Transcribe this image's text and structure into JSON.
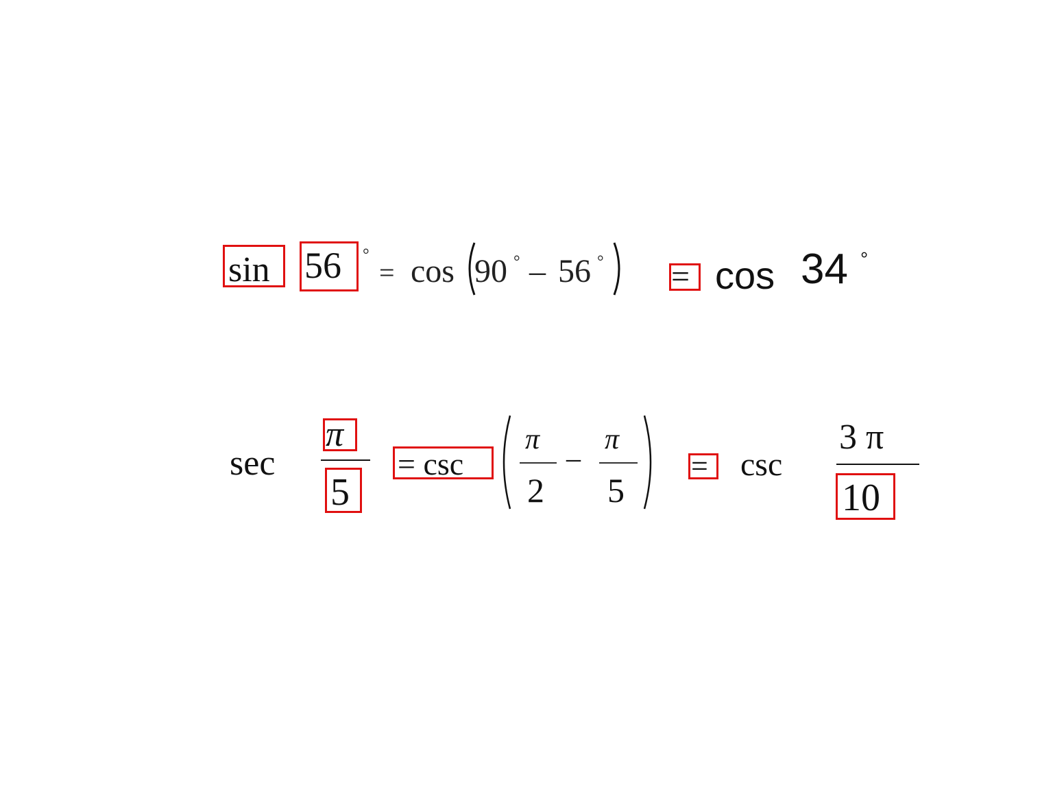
{
  "equation1": {
    "sin": "sin",
    "angle": "56",
    "degree": "°",
    "equals": "=",
    "cos": "cos",
    "inner_90": "90",
    "inner_deg_1": "°",
    "minus": "–",
    "inner_56": "56",
    "inner_deg_2": "°",
    "equals_result": "=",
    "result_cos": "cos",
    "result_angle": "34",
    "result_degree": "°"
  },
  "equation2": {
    "sec": "sec",
    "numerator": "π",
    "denominator": "5",
    "equals_csc": "= csc",
    "frac1_num": "π",
    "frac1_den": "2",
    "minus": "–",
    "frac2_num": "π",
    "frac2_den": "5",
    "equals_result": "=",
    "result_csc": "csc",
    "result_numerator": "3 π",
    "result_denominator": "10"
  },
  "colors": {
    "highlight": "#e01010",
    "text": "#111111"
  }
}
